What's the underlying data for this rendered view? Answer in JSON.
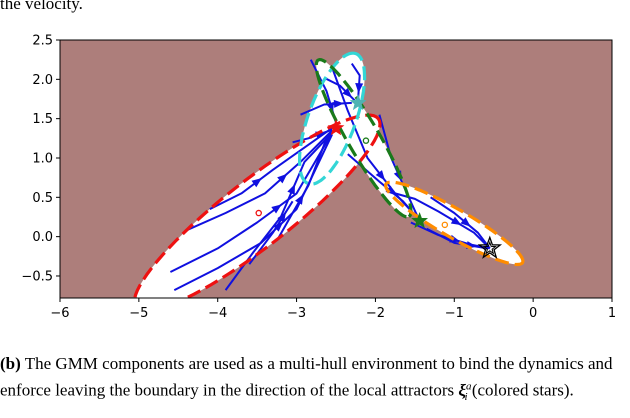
{
  "header_text": "the velocity.",
  "caption": {
    "label": "(b)",
    "text": "The GMM components are used as a multi-hull environment to bind the dynamics and enforce leaving the boundary in the direction of the local attractors",
    "symbol": "ξ",
    "symbol_sup": "a",
    "symbol_sub": "i",
    "tail": "(colored stars)."
  },
  "chart_data": {
    "type": "scatter",
    "title": "",
    "xlabel": "",
    "ylabel": "",
    "xlim": [
      -6,
      1
    ],
    "ylim": [
      -0.78,
      2.5
    ],
    "xticks": [
      "−6",
      "−5",
      "−4",
      "−3",
      "−2",
      "−1",
      "0",
      "1"
    ],
    "yticks": [
      "−0.5",
      "0.0",
      "0.5",
      "1.0",
      "1.5",
      "2.0",
      "2.5"
    ],
    "grid": false,
    "background_color": "#ad7e7b",
    "interior_color": "#ffffff",
    "stream_color": "#1010e0",
    "hulls": [
      {
        "name": "red",
        "color": "#ee1111",
        "center": [
          -3.5,
          0.3
        ],
        "angle_deg": 38,
        "semi_axes": [
          1.95,
          0.42
        ]
      },
      {
        "name": "cyan",
        "color": "#33d6d6",
        "center": [
          -2.55,
          1.5
        ],
        "angle_deg": 70,
        "semi_axes": [
          0.88,
          0.3
        ]
      },
      {
        "name": "green",
        "color": "#1a7a1a",
        "center": [
          -2.15,
          1.25
        ],
        "angle_deg": -60,
        "semi_axes": [
          1.15,
          0.2
        ]
      },
      {
        "name": "orange",
        "color": "#ff8c00",
        "center": [
          -1.0,
          0.17
        ],
        "angle_deg": -30,
        "semi_axes": [
          1.0,
          0.18
        ]
      }
    ],
    "component_centers": [
      {
        "color": "#ee1111",
        "x": -3.48,
        "y": 0.3
      },
      {
        "color": "#1a7a1a",
        "x": -2.12,
        "y": 1.22
      },
      {
        "color": "#ff8c00",
        "x": -1.12,
        "y": 0.15
      }
    ],
    "local_attractors": [
      {
        "color": "#ee1111",
        "x": -2.5,
        "y": 1.38
      },
      {
        "color": "#4fb3b3",
        "x": -2.22,
        "y": 1.7
      },
      {
        "color": "#1a7a1a",
        "x": -1.44,
        "y": 0.2
      },
      {
        "color": "#000000",
        "x": -0.55,
        "y": -0.15,
        "hollow": true
      }
    ],
    "streamlines": [
      [
        [
          -4.55,
          -0.68
        ],
        [
          -4.0,
          -0.4
        ],
        [
          -3.45,
          -0.08
        ],
        [
          -3.0,
          0.35
        ],
        [
          -2.55,
          1.3
        ]
      ],
      [
        [
          -4.6,
          -0.45
        ],
        [
          -4.0,
          -0.15
        ],
        [
          -3.5,
          0.18
        ],
        [
          -3.0,
          0.55
        ],
        [
          -2.55,
          1.32
        ]
      ],
      [
        [
          -4.4,
          0.08
        ],
        [
          -3.9,
          0.3
        ],
        [
          -3.4,
          0.55
        ],
        [
          -2.95,
          0.95
        ],
        [
          -2.55,
          1.35
        ]
      ],
      [
        [
          -4.1,
          0.35
        ],
        [
          -3.7,
          0.55
        ],
        [
          -3.3,
          0.85
        ],
        [
          -2.55,
          1.38
        ]
      ],
      [
        [
          -3.9,
          -0.68
        ],
        [
          -3.55,
          -0.2
        ],
        [
          -3.2,
          0.25
        ],
        [
          -2.9,
          0.95
        ],
        [
          -2.55,
          1.32
        ]
      ],
      [
        [
          -3.6,
          -0.35
        ],
        [
          -3.3,
          0.05
        ],
        [
          -3.05,
          0.45
        ]
      ],
      [
        [
          -3.25,
          -0.05
        ],
        [
          -3.05,
          0.3
        ],
        [
          -2.85,
          0.65
        ],
        [
          -2.6,
          1.3
        ]
      ],
      [
        [
          -3.05,
          1.2
        ],
        [
          -2.85,
          1.25
        ],
        [
          -2.55,
          1.36
        ]
      ],
      [
        [
          -2.95,
          1.55
        ],
        [
          -2.65,
          1.68
        ],
        [
          -2.3,
          1.7
        ]
      ],
      [
        [
          -2.65,
          2.02
        ],
        [
          -2.45,
          1.92
        ],
        [
          -2.25,
          1.72
        ]
      ],
      [
        [
          -2.3,
          2.2
        ],
        [
          -2.2,
          2.05
        ],
        [
          -2.22,
          1.75
        ]
      ],
      [
        [
          -2.82,
          2.25
        ],
        [
          -2.62,
          1.85
        ],
        [
          -2.5,
          1.45
        ]
      ],
      [
        [
          -2.55,
          2.15
        ],
        [
          -2.35,
          1.6
        ],
        [
          -2.1,
          1.0
        ],
        [
          -1.75,
          0.55
        ],
        [
          -1.45,
          0.22
        ]
      ],
      [
        [
          -2.35,
          1.05
        ],
        [
          -1.95,
          0.7
        ],
        [
          -1.65,
          0.45
        ],
        [
          -1.45,
          0.22
        ]
      ],
      [
        [
          -1.95,
          1.55
        ],
        [
          -1.8,
          1.0
        ],
        [
          -1.6,
          0.55
        ],
        [
          -1.45,
          0.22
        ]
      ],
      [
        [
          -1.75,
          0.55
        ],
        [
          -1.5,
          0.48
        ],
        [
          -1.2,
          0.32
        ],
        [
          -0.75,
          0.05
        ],
        [
          -0.55,
          -0.15
        ]
      ],
      [
        [
          -1.55,
          0.18
        ],
        [
          -1.2,
          0.02
        ],
        [
          -0.8,
          -0.1
        ],
        [
          -0.55,
          -0.15
        ]
      ],
      [
        [
          -1.3,
          0.5
        ],
        [
          -1.0,
          0.3
        ],
        [
          -0.7,
          0.05
        ],
        [
          -0.55,
          -0.15
        ]
      ],
      [
        [
          -1.35,
          0.1
        ],
        [
          -1.0,
          -0.08
        ],
        [
          -0.58,
          -0.15
        ]
      ]
    ]
  }
}
